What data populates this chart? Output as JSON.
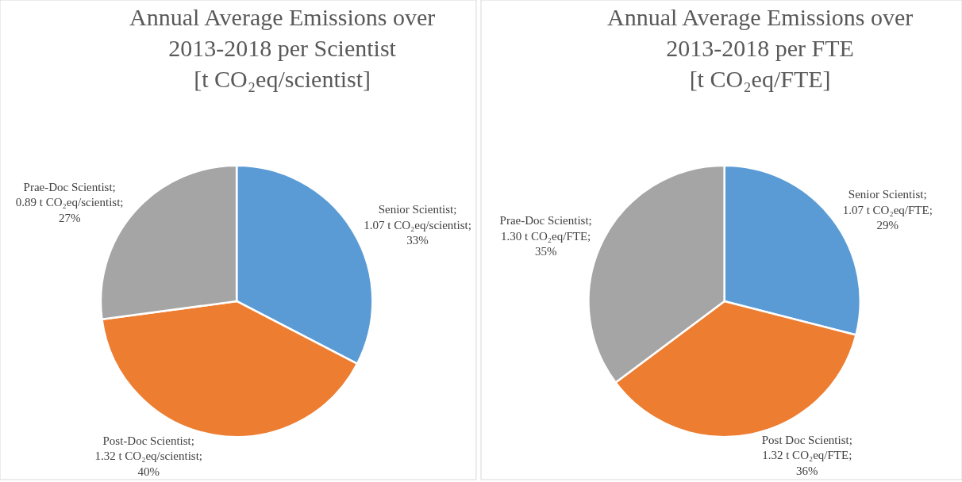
{
  "chart_data": [
    {
      "type": "pie",
      "title": "Annual Average Emissions over\n2013-2018 per Scientist\n[t CO₂eq/scientist]",
      "categories": [
        "Senior Scientist",
        "Post-Doc Scientist",
        "Prae-Doc Scientist"
      ],
      "values": [
        1.07,
        1.32,
        0.89
      ],
      "value_labels": [
        ";\n1.07 t CO₂eq/scientist;\n33%",
        ";\n1.32 t CO₂eq/scientist;\n40%",
        ";\n0.89 t CO₂eq/scientist;\n27%"
      ],
      "colors": [
        "#5b9bd5",
        "#ed7d31",
        "#a5a5a5"
      ]
    },
    {
      "type": "pie",
      "title": "Annual Average Emissions over\n2013-2018 per FTE\n[t CO₂eq/FTE]",
      "categories": [
        "Senior Scientist",
        "Post Doc Scientist",
        "Prae-Doc Scientist"
      ],
      "values": [
        1.07,
        1.32,
        1.3
      ],
      "value_labels": [
        ";\n1.07 t CO₂eq/FTE;\n29%",
        ";\n1.32 t CO₂eq/FTE;\n36%",
        ";\n1.30 t CO₂eq/FTE;\n35%"
      ],
      "colors": [
        "#5b9bd5",
        "#ed7d31",
        "#a5a5a5"
      ]
    }
  ]
}
